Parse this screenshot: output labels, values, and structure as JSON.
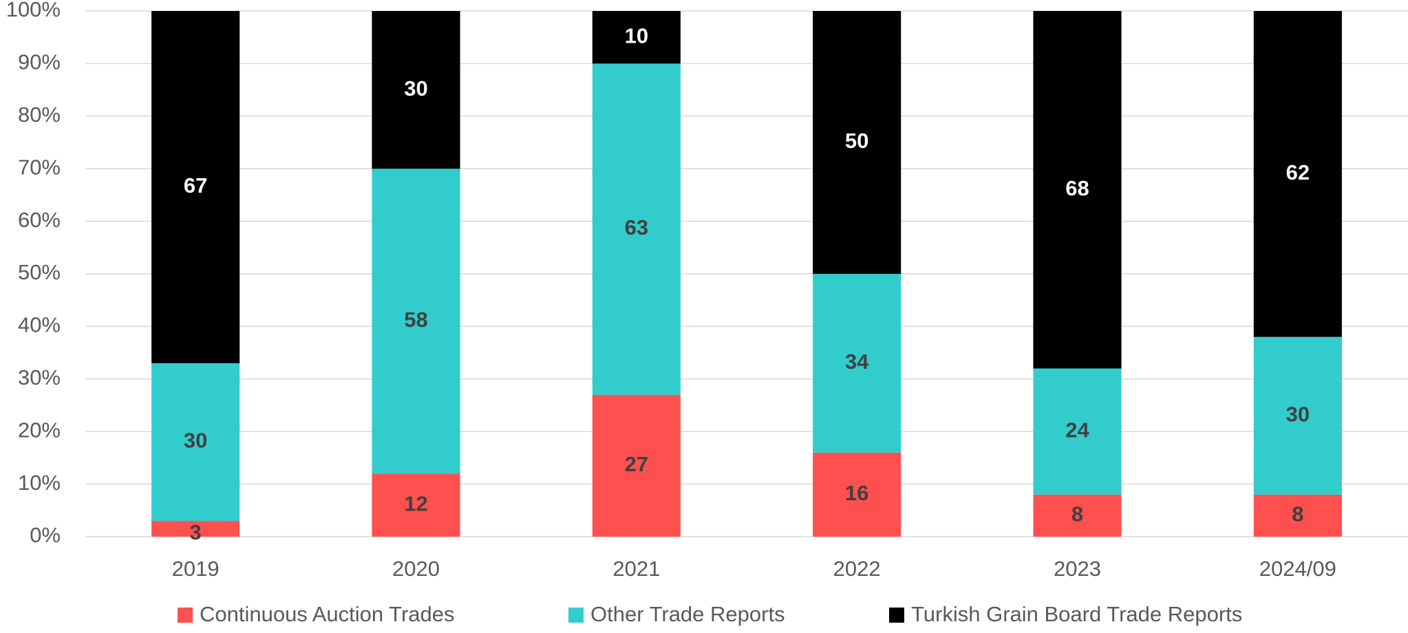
{
  "chart_data": {
    "type": "stacked_bar",
    "categories": [
      "2019",
      "2020",
      "2021",
      "2022",
      "2023",
      "2024/09"
    ],
    "series": [
      {
        "name": "Continuous Auction Trades",
        "color": "#ff5050",
        "label_color": "#404040",
        "values": [
          3,
          12,
          27,
          16,
          8,
          8
        ]
      },
      {
        "name": "Other Trade Reports",
        "color": "#33cccc",
        "label_color": "#404040",
        "values": [
          30,
          58,
          63,
          34,
          24,
          30
        ]
      },
      {
        "name": "Turkish Grain Board Trade Reports",
        "color": "#000000",
        "label_color": "#ffffff",
        "values": [
          67,
          30,
          10,
          50,
          68,
          62
        ]
      }
    ],
    "ylim": [
      0,
      100
    ],
    "yticks": [
      {
        "value": 0,
        "label": "0%"
      },
      {
        "value": 10,
        "label": "10%"
      },
      {
        "value": 20,
        "label": "20%"
      },
      {
        "value": 30,
        "label": "30%"
      },
      {
        "value": 40,
        "label": "40%"
      },
      {
        "value": 50,
        "label": "50%"
      },
      {
        "value": 60,
        "label": "60%"
      },
      {
        "value": 70,
        "label": "70%"
      },
      {
        "value": 80,
        "label": "80%"
      },
      {
        "value": 90,
        "label": "90%"
      },
      {
        "value": 100,
        "label": "100%"
      }
    ],
    "grid": true,
    "legend": "bottom"
  }
}
